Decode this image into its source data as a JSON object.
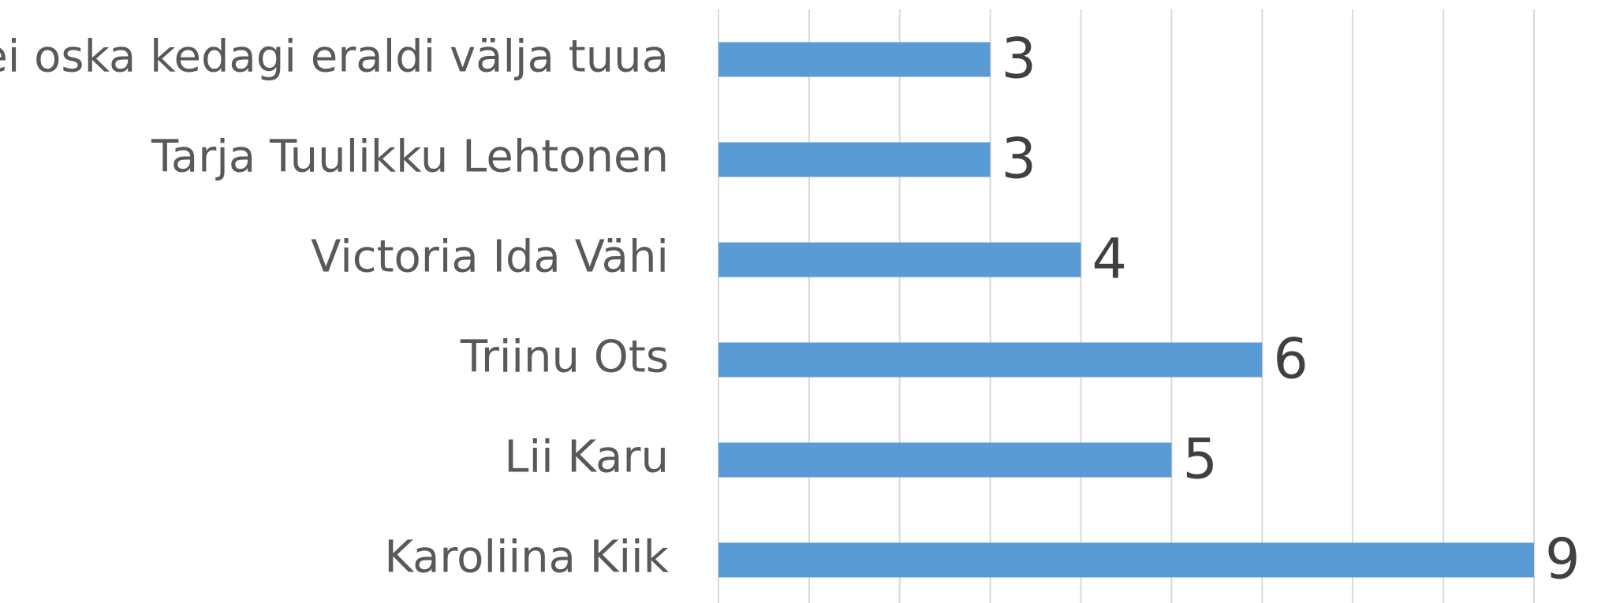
{
  "chart_data": {
    "type": "bar",
    "orientation": "horizontal",
    "categories": [
      "ei oska kedagi eraldi välja tuua",
      "Tarja Tuulikku Lehtonen",
      "Victoria Ida Vähi",
      "Triinu Ots",
      "Lii Karu",
      "Karoliina Kiik"
    ],
    "values": [
      3,
      3,
      4,
      6,
      5,
      9
    ],
    "color": "#5b9bd5",
    "xlim": [
      0,
      9
    ],
    "xticks": [
      0,
      1,
      2,
      3,
      4,
      5,
      6,
      7,
      8,
      9
    ],
    "grid": true
  }
}
